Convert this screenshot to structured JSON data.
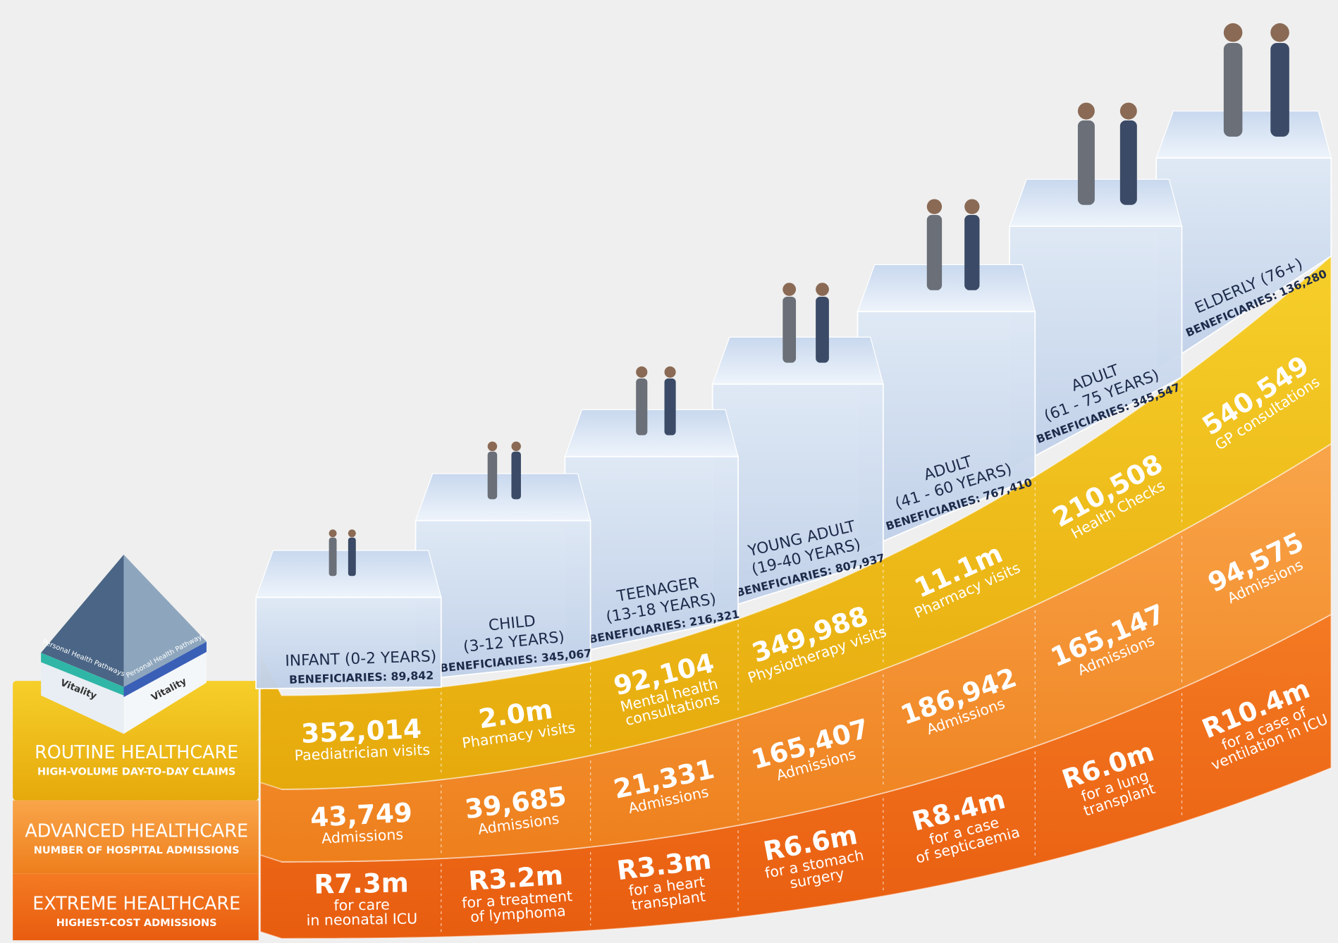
{
  "stages": [
    {
      "title": "INFANT (0-2 YEARS)",
      "beneficiaries": "BENEFICIARIES: 89,842"
    },
    {
      "title": "CHILD",
      "range": "(3-12 YEARS)",
      "beneficiaries": "BENEFICIARIES: 345,067"
    },
    {
      "title": "TEENAGER",
      "range": "(13-18 YEARS)",
      "beneficiaries": "BENEFICIARIES: 216,321"
    },
    {
      "title": "YOUNG ADULT",
      "range": "(19-40 YEARS)",
      "beneficiaries": "BENEFICIARIES: 807,937"
    },
    {
      "title": "ADULT",
      "range": "(41 - 60 YEARS)",
      "beneficiaries": "BENEFICIARIES: 767,410"
    },
    {
      "title": "ADULT",
      "range": "(61 - 75 YEARS)",
      "beneficiaries": "BENEFICIARIES: 345,547"
    },
    {
      "title": "ELDERLY (76+)",
      "beneficiaries": "BENEFICIARIES: 136,280"
    }
  ],
  "bands": [
    {
      "title": "ROUTINE HEALTHCARE",
      "subtitle": "HIGH-VOLUME DAY-TO-DAY CLAIMS",
      "cells": [
        {
          "value": "352,014",
          "caption": [
            "Paediatrician visits"
          ]
        },
        {
          "value": "2.0m",
          "caption": [
            "Pharmacy visits"
          ]
        },
        {
          "value": "92,104",
          "caption": [
            "Mental health",
            "consultations"
          ]
        },
        {
          "value": "349,988",
          "caption": [
            "Physiotherapy visits"
          ]
        },
        {
          "value": "11.1m",
          "caption": [
            "Pharmacy visits"
          ]
        },
        {
          "value": "210,508",
          "caption": [
            "Health Checks"
          ]
        },
        {
          "value": "540,549",
          "caption": [
            "GP consultations"
          ]
        }
      ]
    },
    {
      "title": "ADVANCED HEALTHCARE",
      "subtitle": "NUMBER OF HOSPITAL ADMISSIONS",
      "cells": [
        {
          "value": "43,749",
          "caption": [
            "Admissions"
          ]
        },
        {
          "value": "39,685",
          "caption": [
            "Admissions"
          ]
        },
        {
          "value": "21,331",
          "caption": [
            "Admissions"
          ]
        },
        {
          "value": "165,407",
          "caption": [
            "Admissions"
          ]
        },
        {
          "value": "186,942",
          "caption": [
            "Admissions"
          ]
        },
        {
          "value": "165,147",
          "caption": [
            "Admissions"
          ]
        },
        {
          "value": "94,575",
          "caption": [
            "Admissions"
          ]
        }
      ]
    },
    {
      "title": "EXTREME HEALTHCARE",
      "subtitle": "HIGHEST-COST ADMISSIONS",
      "cells": [
        {
          "value": "R7.3m",
          "caption": [
            "for care",
            "in neonatal ICU"
          ]
        },
        {
          "value": "R3.2m",
          "caption": [
            "for a treatment",
            "of lymphoma"
          ]
        },
        {
          "value": "R3.3m",
          "caption": [
            "for a heart",
            "transplant"
          ]
        },
        {
          "value": "R6.6m",
          "caption": [
            "for a stomach",
            "surgery"
          ]
        },
        {
          "value": "R8.4m",
          "caption": [
            "for a case",
            "of septicaemia"
          ]
        },
        {
          "value": "R6.0m",
          "caption": [
            "for a lung",
            "transplant"
          ]
        },
        {
          "value": "R10.4m",
          "caption": [
            "for a case of",
            "ventilation in ICU"
          ]
        }
      ]
    }
  ],
  "pyramid": {
    "pathways_left": "Personal Health Pathways",
    "pathways_right": "Personal Health Pathways",
    "brand_left": "Vitality",
    "brand_right": "Vitality"
  }
}
